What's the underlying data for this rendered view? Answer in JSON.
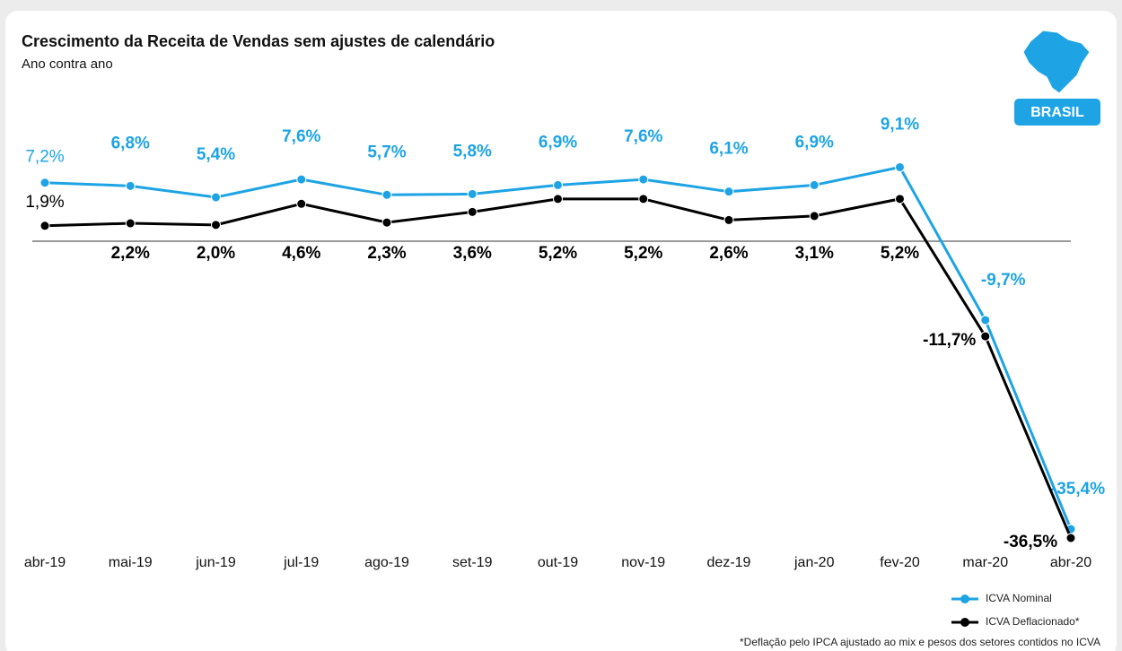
{
  "chart_data": {
    "type": "line",
    "title": "Crescimento da Receita de Vendas sem ajustes de calendário",
    "subtitle": "Ano contra ano",
    "badge": "BRASIL",
    "footnote": "*Deflação pelo IPCA ajustado ao mix e pesos dos setores contidos no ICVA",
    "categories": [
      "abr-19",
      "mai-19",
      "jun-19",
      "jul-19",
      "ago-19",
      "set-19",
      "out-19",
      "nov-19",
      "dez-19",
      "jan-20",
      "fev-20",
      "mar-20",
      "abr-20"
    ],
    "series": [
      {
        "name": "ICVA Nominal",
        "color": "#1ea4e4",
        "values": [
          7.2,
          6.8,
          5.4,
          7.6,
          5.7,
          5.8,
          6.9,
          7.6,
          6.1,
          6.9,
          9.1,
          -9.7,
          -35.4
        ],
        "value_labels": [
          "7,2%",
          "6,8%",
          "5,4%",
          "7,6%",
          "5,7%",
          "5,8%",
          "6,9%",
          "7,6%",
          "6,1%",
          "6,9%",
          "9,1%",
          "-9,7%",
          "-35,4%"
        ]
      },
      {
        "name": "ICVA Deflacionado*",
        "color": "#000000",
        "values": [
          1.9,
          2.2,
          2.0,
          4.6,
          2.3,
          3.6,
          5.2,
          5.2,
          2.6,
          3.1,
          5.2,
          -11.7,
          -36.5
        ],
        "value_labels": [
          "1,9%",
          "2,2%",
          "2,0%",
          "4,6%",
          "2,3%",
          "3,6%",
          "5,2%",
          "5,2%",
          "2,6%",
          "3,1%",
          "5,2%",
          "-11,7%",
          "-36,5%"
        ]
      }
    ],
    "legend": "bottom-right"
  }
}
